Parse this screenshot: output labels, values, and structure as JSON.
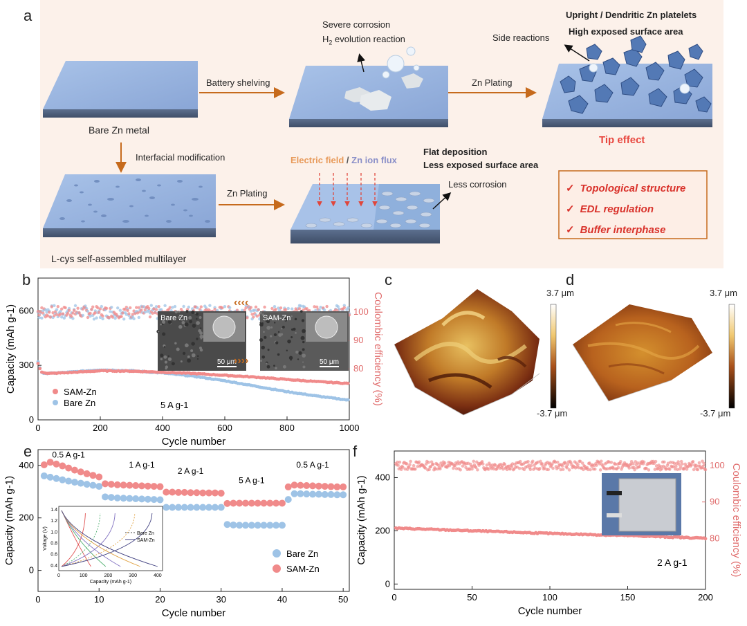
{
  "panel_labels": {
    "a": "a",
    "b": "b",
    "c": "c",
    "d": "d",
    "e": "e",
    "f": "f"
  },
  "schematic": {
    "bare_zn": "Bare Zn metal",
    "battery_shelving": "Battery shelving",
    "severe_corrosion": "Severe corrosion",
    "h2_evolution_main": "H",
    "h2_evolution_sub": "2",
    "h2_evolution_rest": " evolution reaction",
    "zn_plating_top": "Zn Plating",
    "side_reactions": "Side reactions",
    "upright_dendritic": "Upright / Dendritic Zn platelets",
    "high_exposed": "High exposed surface area",
    "tip_effect": "Tip effect",
    "interfacial_mod": "Interfacial modification",
    "zn_plating_bottom": "Zn Plating",
    "electric_field_1": "Electric field",
    "electric_field_sep": " / ",
    "electric_field_2": "Zn ion flux",
    "flat_deposition": "Flat deposition",
    "less_exposed": "Less exposed surface area",
    "less_corrosion": "Less corrosion",
    "lcys": "L-cys self-assembled multilayer",
    "checklist": [
      "Topological structure",
      "EDL regulation",
      "Buffer interphase"
    ],
    "check_glyph": "✓"
  },
  "afm": {
    "c_top": "3.7 μm",
    "c_bottom": "-3.7 μm",
    "d_top": "3.7 μm",
    "d_bottom": "-3.7 μm"
  },
  "chart_data": [
    {
      "type": "scatter",
      "panel": "b",
      "xlabel": "Cycle number",
      "ylabel": "Capacity (mAh g-1)",
      "ylabel2": "Coulombic efficiency (%)",
      "xlim": [
        0,
        1000
      ],
      "ylim": [
        0,
        780
      ],
      "y2lim": [
        62,
        112
      ],
      "xticks": [
        0,
        200,
        400,
        600,
        800,
        1000
      ],
      "yticks": [
        0,
        300,
        600
      ],
      "y2ticks": [
        80,
        90,
        100
      ],
      "annotation": "5 A g-1",
      "inset_labels": [
        "Bare Zn",
        "SAM-Zn",
        "50 μm",
        "50 μm"
      ],
      "legend_placement": "bottom-left",
      "series": [
        {
          "name": "SAM-Zn",
          "axis": "capacity",
          "x": [
            0,
            10,
            30,
            100,
            200,
            300,
            400,
            500,
            600,
            700,
            800,
            900,
            1000
          ],
          "y": [
            310,
            265,
            255,
            260,
            270,
            268,
            262,
            255,
            245,
            235,
            222,
            210,
            200
          ]
        },
        {
          "name": "Bare Zn",
          "axis": "capacity",
          "x": [
            0,
            10,
            30,
            100,
            200,
            300,
            400,
            500,
            600,
            700,
            800,
            900,
            1000
          ],
          "y": [
            320,
            260,
            255,
            262,
            275,
            270,
            258,
            240,
            215,
            185,
            155,
            130,
            108
          ]
        },
        {
          "name": "SAM-Zn CE",
          "axis": "ce",
          "x": [
            0,
            1000
          ],
          "y": [
            100,
            100
          ]
        },
        {
          "name": "Bare Zn CE",
          "axis": "ce",
          "x": [
            0,
            1000
          ],
          "y": [
            100,
            100
          ]
        }
      ]
    },
    {
      "type": "scatter",
      "panel": "e",
      "xlabel": "Cycle number",
      "ylabel": "Capacity (mAh g-1)",
      "xlim": [
        0,
        51
      ],
      "ylim": [
        -80,
        460
      ],
      "xticks": [
        0,
        10,
        20,
        30,
        40,
        50
      ],
      "yticks": [
        0,
        200,
        400
      ],
      "rate_labels": [
        "0.5 A g-1",
        "1 A g-1",
        "2 A g-1",
        "5 A g-1",
        "0.5 A g-1"
      ],
      "legend_placement": "bottom-right",
      "series": [
        {
          "name": "Bare Zn",
          "x": [
            1,
            2,
            3,
            4,
            5,
            6,
            7,
            8,
            9,
            10,
            11,
            12,
            13,
            14,
            15,
            16,
            17,
            18,
            19,
            20,
            21,
            22,
            23,
            24,
            25,
            26,
            27,
            28,
            29,
            30,
            31,
            32,
            33,
            34,
            35,
            36,
            37,
            38,
            39,
            40,
            41,
            42,
            43,
            44,
            45,
            46,
            47,
            48,
            49,
            50
          ],
          "y": [
            360,
            355,
            350,
            345,
            340,
            336,
            332,
            328,
            324,
            320,
            280,
            278,
            276,
            275,
            274,
            273,
            272,
            271,
            270,
            269,
            240,
            240,
            240,
            240,
            240,
            240,
            240,
            240,
            240,
            240,
            175,
            173,
            172,
            172,
            172,
            172,
            172,
            172,
            172,
            172,
            270,
            292,
            292,
            291,
            290,
            290,
            289,
            289,
            288,
            288
          ]
        },
        {
          "name": "SAM-Zn",
          "x": [
            1,
            2,
            3,
            4,
            5,
            6,
            7,
            8,
            9,
            10,
            11,
            12,
            13,
            14,
            15,
            16,
            17,
            18,
            19,
            20,
            21,
            22,
            23,
            24,
            25,
            26,
            27,
            28,
            29,
            30,
            31,
            32,
            33,
            34,
            35,
            36,
            37,
            38,
            39,
            40,
            41,
            42,
            43,
            44,
            45,
            46,
            47,
            48,
            49,
            50
          ],
          "y": [
            402,
            412,
            405,
            398,
            390,
            382,
            375,
            368,
            362,
            356,
            330,
            328,
            326,
            325,
            324,
            323,
            322,
            321,
            320,
            319,
            298,
            298,
            297,
            297,
            296,
            296,
            295,
            295,
            295,
            294,
            255,
            256,
            256,
            256,
            256,
            256,
            256,
            256,
            256,
            256,
            318,
            325,
            324,
            323,
            322,
            321,
            320,
            319,
            318,
            318
          ]
        }
      ],
      "inset": {
        "xlabel": "Capacity (mAh g-1)",
        "ylabel": "Voltage (V)",
        "xticks": [
          0,
          100,
          200,
          300,
          400
        ],
        "yticks": [
          0.4,
          0.6,
          0.8,
          1.0,
          1.2,
          1.4
        ],
        "legend": [
          "Bare Zn",
          "SAM-Zn"
        ]
      }
    },
    {
      "type": "scatter",
      "panel": "f",
      "xlabel": "Cycle number",
      "ylabel": "Capacity (mAh g-1)",
      "ylabel2": "Coulombic efficiency (%)",
      "xlim": [
        0,
        200
      ],
      "ylim": [
        -20,
        500
      ],
      "y2lim": [
        66,
        104
      ],
      "xticks": [
        0,
        50,
        100,
        150,
        200
      ],
      "yticks": [
        0,
        200,
        400
      ],
      "y2ticks": [
        80,
        90,
        100
      ],
      "annotation": "2 A g-1",
      "series": [
        {
          "name": "Capacity",
          "axis": "capacity",
          "x": [
            0,
            50,
            100,
            150,
            200
          ],
          "y": [
            210,
            200,
            190,
            182,
            172
          ]
        },
        {
          "name": "CE",
          "axis": "ce",
          "x": [
            0,
            200
          ],
          "y": [
            100,
            100
          ]
        }
      ]
    }
  ],
  "colors": {
    "sam": "#f08a8a",
    "bare": "#9ec3e6",
    "arrow": "#c66a1c",
    "tip": "#e8473f",
    "axis_red": "#e06b6b",
    "check_red": "#d9322b"
  }
}
